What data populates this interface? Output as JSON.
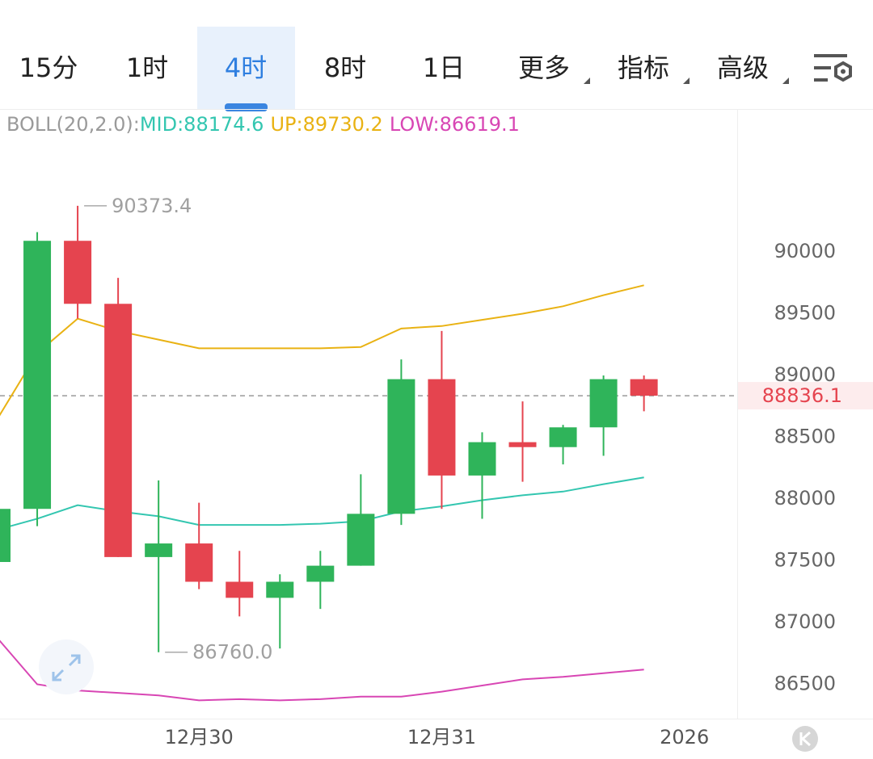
{
  "header": {
    "tabs": [
      "15分",
      "1时",
      "4时",
      "8时",
      "1日",
      "更多",
      "指标",
      "高级"
    ],
    "selected_tab": 2,
    "dropdown_tabs": [
      5,
      6,
      7
    ]
  },
  "chart_data": {
    "type": "candlestick",
    "indicator": "BOLL(20,2.0):",
    "categories": [
      null,
      null,
      null,
      null,
      null,
      "12月30",
      null,
      null,
      null,
      null,
      null,
      "12月31",
      null,
      null,
      null,
      null,
      null,
      "2026"
    ],
    "open": [
      87490,
      87920,
      90090,
      89580,
      87530,
      87640,
      87330,
      87200,
      87330,
      87460,
      87880,
      88970,
      88190,
      88460,
      88420,
      88580,
      88970,
      null
    ],
    "high": [
      87920,
      90160,
      90373.4,
      89790,
      88150,
      87970,
      87580,
      87390,
      87580,
      88200,
      89130,
      89360,
      88540,
      88790,
      88600,
      89000,
      89000,
      null
    ],
    "low": [
      87490,
      87780,
      89460,
      87530,
      86760,
      87270,
      87050,
      86790,
      87110,
      87460,
      87790,
      87920,
      87840,
      88140,
      88280,
      88350,
      88710,
      null
    ],
    "close": [
      87920,
      90090,
      89580,
      87530,
      87640,
      87330,
      87200,
      87330,
      87460,
      87880,
      88970,
      88190,
      88460,
      88420,
      88580,
      88970,
      88836.1,
      null
    ],
    "up_color": "#2fb45a",
    "down_color": "#e5444f",
    "series": [
      {
        "name": "MID:88174.6",
        "color": "#33c6b0",
        "values": [
          87750,
          87840,
          87950,
          87900,
          87860,
          87790,
          87790,
          87790,
          87800,
          87820,
          87900,
          87940,
          87990,
          88030,
          88060,
          88120,
          88174.6,
          null
        ]
      },
      {
        "name": "UP:89730.2",
        "color": "#e9b213",
        "values": [
          88640,
          89180,
          89460,
          89360,
          89290,
          89220,
          89220,
          89220,
          89220,
          89230,
          89380,
          89400,
          89450,
          89500,
          89560,
          89650,
          89730.2,
          null
        ]
      },
      {
        "name": "LOW:86619.1",
        "color": "#d846b4",
        "values": [
          86880,
          86500,
          86450,
          86430,
          86410,
          86370,
          86380,
          86370,
          86380,
          86400,
          86400,
          86440,
          86490,
          86540,
          86560,
          86590,
          86619.1,
          null
        ]
      }
    ],
    "ylim": [
      86222,
      91157
    ],
    "yticks": [
      86500,
      87000,
      87500,
      88000,
      88500,
      89000,
      89500,
      90000
    ],
    "annotations": [
      {
        "value": 90373.4,
        "label": "90373.4"
      },
      {
        "value": 86760,
        "label": "86760.0"
      }
    ],
    "last_price": {
      "value": 88836.1,
      "label": "88836.1"
    }
  }
}
